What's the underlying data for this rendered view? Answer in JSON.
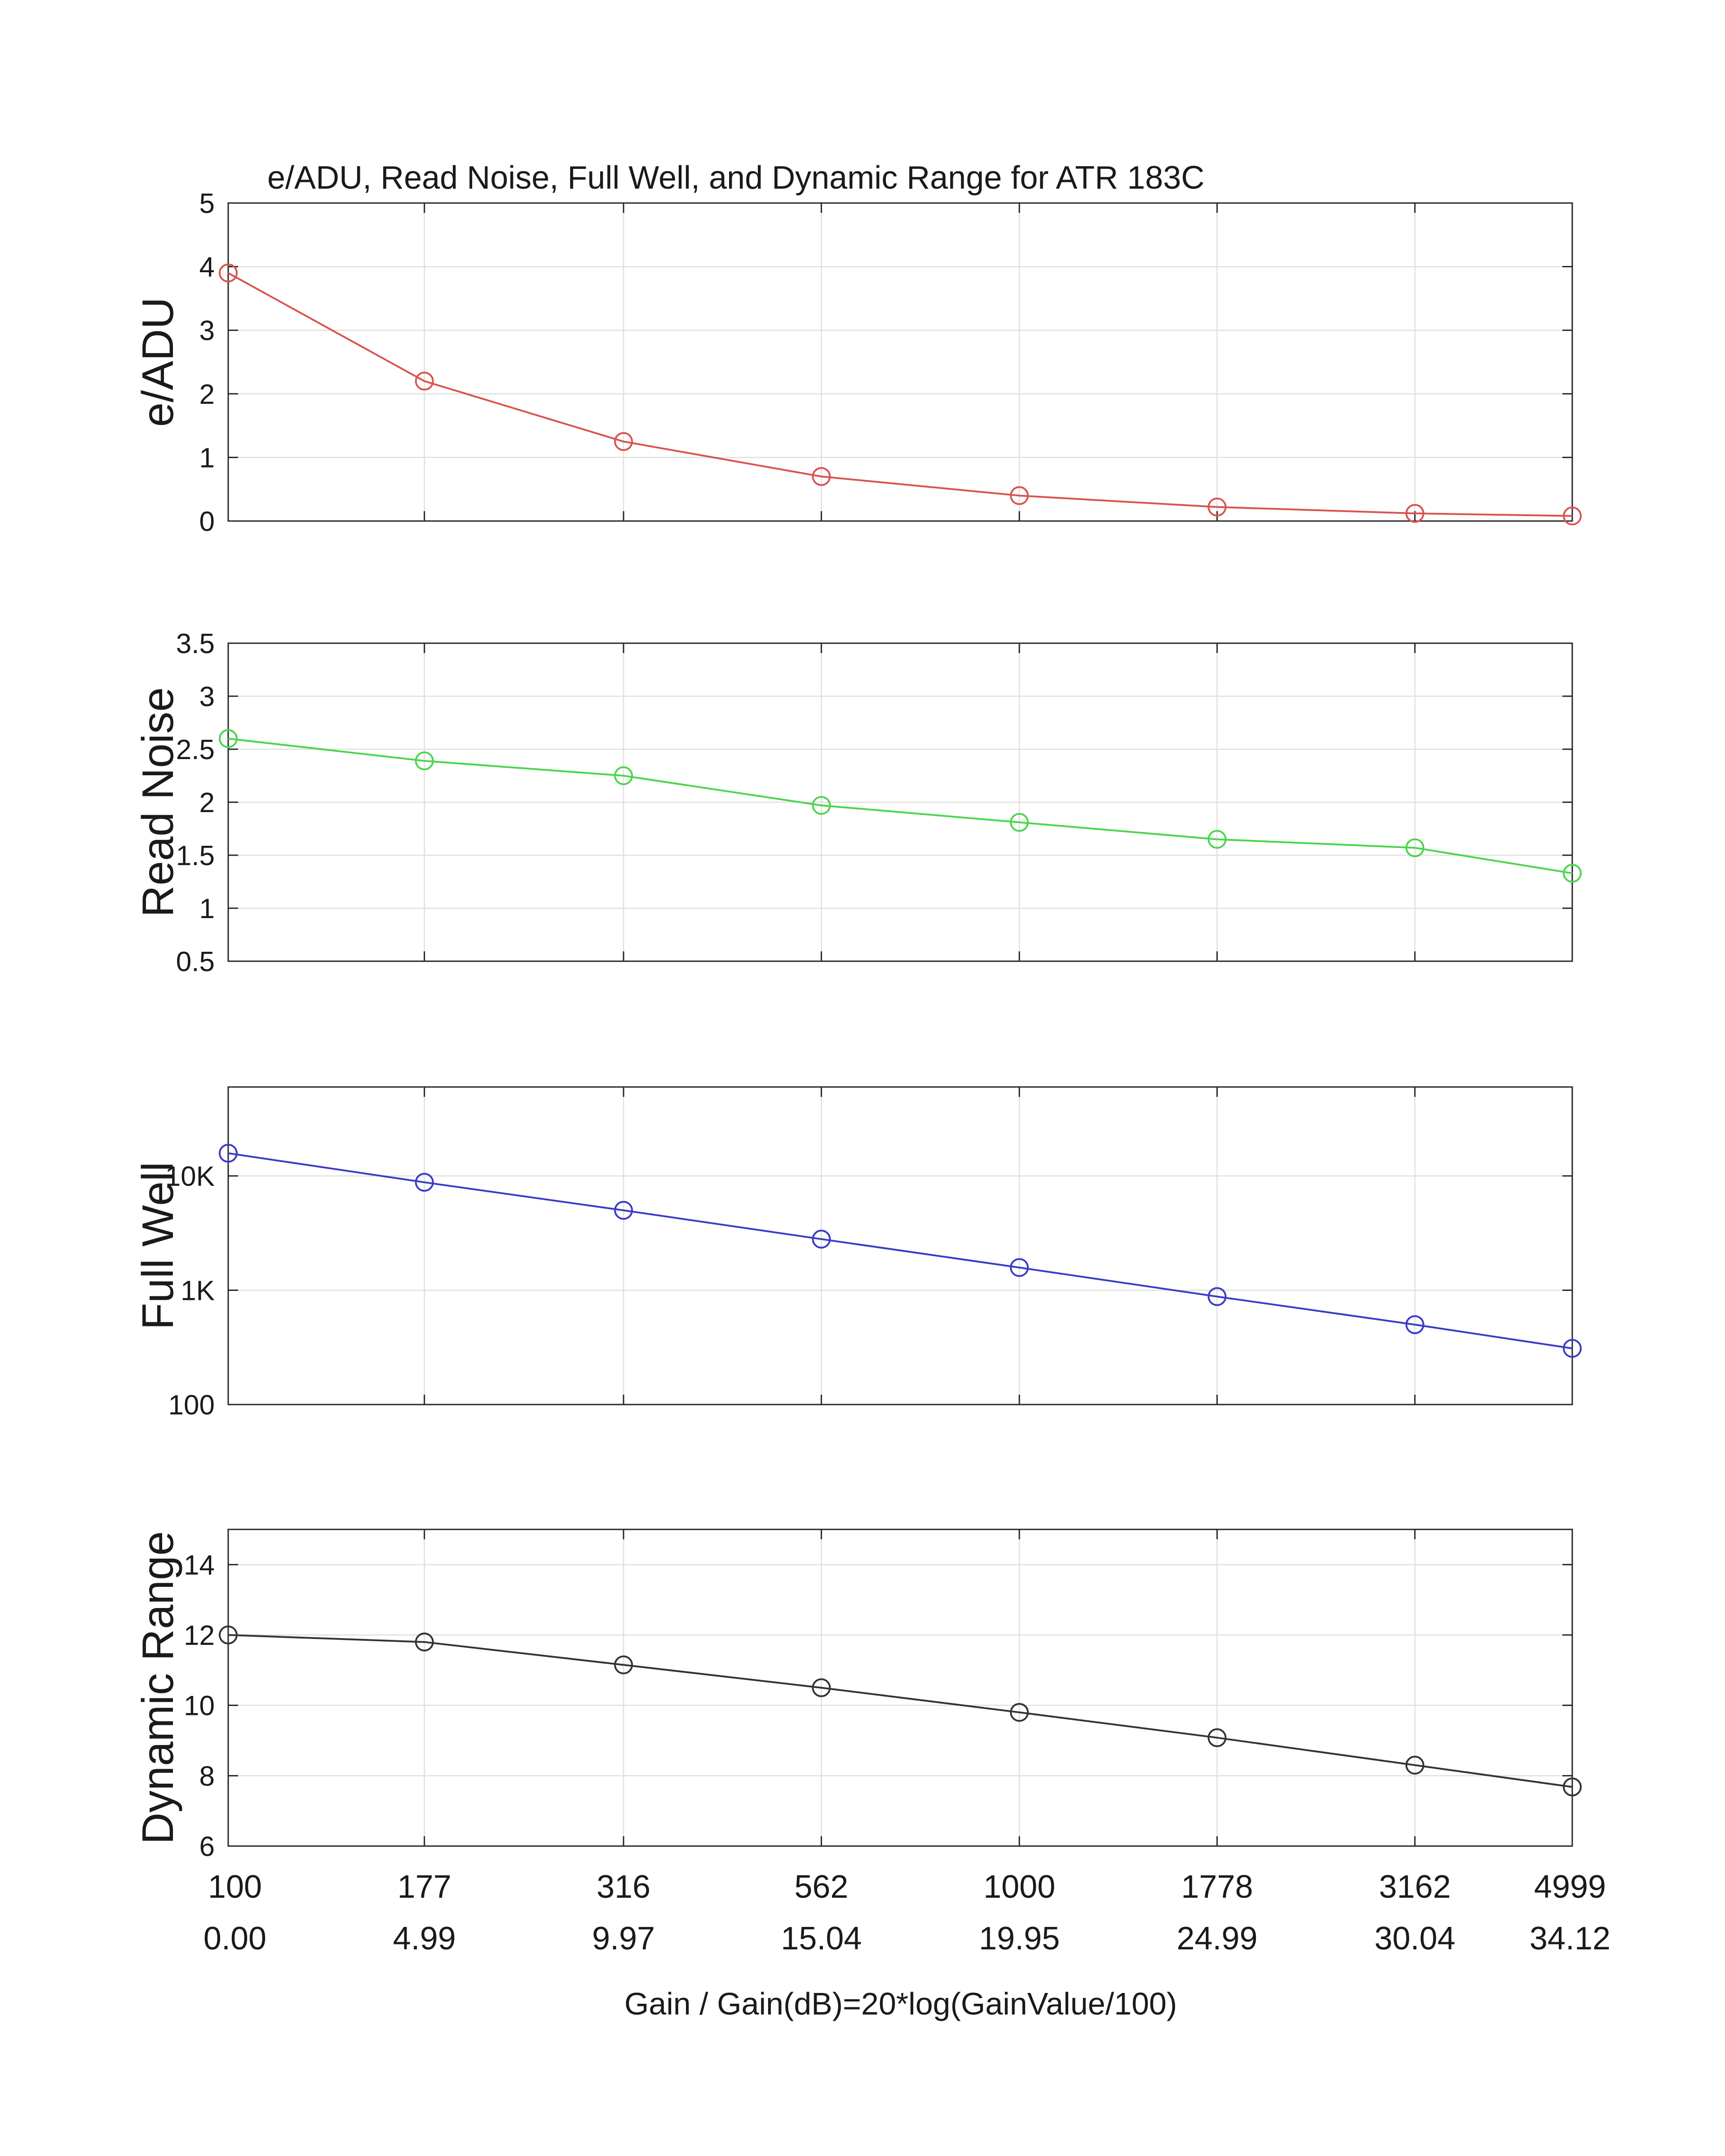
{
  "chart_data": {
    "title": "e/ADU, Read Noise, Full Well, and Dynamic Range for ATR 183C",
    "xlabel": "Gain / Gain(dB)=20*log(GainValue/100)",
    "x_tick_labels": [
      "100",
      "177",
      "316",
      "562",
      "1000",
      "1778",
      "3162",
      "4999"
    ],
    "x_tick_labels_db": [
      "0.00",
      "4.99",
      "9.97",
      "15.04",
      "19.95",
      "24.99",
      "30.04",
      "34.12"
    ],
    "x_scale": "log",
    "x": [
      100,
      177,
      316,
      562,
      1000,
      1778,
      3162,
      4999
    ],
    "grid": true,
    "subplots": [
      {
        "type": "line",
        "ylabel": "e/ADU",
        "color": "#d9534f",
        "marker": "circle",
        "ylim": [
          0,
          5
        ],
        "y_scale": "linear",
        "yticks": [
          0,
          1,
          2,
          3,
          4,
          5
        ],
        "ytick_labels": [
          "0",
          "1",
          "2",
          "3",
          "4",
          "5"
        ],
        "values": [
          3.9,
          2.2,
          1.25,
          0.7,
          0.4,
          0.22,
          0.12,
          0.08
        ]
      },
      {
        "type": "line",
        "ylabel": "Read Noise",
        "color": "#4cd44c",
        "marker": "circle",
        "ylim": [
          0.5,
          3.5
        ],
        "y_scale": "linear",
        "yticks": [
          0.5,
          1,
          1.5,
          2,
          2.5,
          3,
          3.5
        ],
        "ytick_labels": [
          "0.5",
          "1",
          "1.5",
          "2",
          "2.5",
          "3",
          "3.5"
        ],
        "values": [
          2.6,
          2.39,
          2.25,
          1.97,
          1.81,
          1.65,
          1.57,
          1.33
        ]
      },
      {
        "type": "line",
        "ylabel": "Full Well",
        "color": "#3a3ac9",
        "marker": "circle",
        "ylim": [
          100,
          60000
        ],
        "y_scale": "log",
        "yticks": [
          100,
          1000,
          10000
        ],
        "ytick_labels": [
          "100",
          "1K",
          "10K"
        ],
        "values": [
          15800,
          8800,
          5000,
          2800,
          1580,
          880,
          500,
          310
        ]
      },
      {
        "type": "line",
        "ylabel": "Dynamic Range",
        "color": "#333333",
        "marker": "circle",
        "ylim": [
          6,
          15
        ],
        "y_scale": "linear",
        "yticks": [
          6,
          8,
          10,
          12,
          14
        ],
        "ytick_labels": [
          "6",
          "8",
          "10",
          "12",
          "14"
        ],
        "values": [
          12.0,
          11.8,
          11.15,
          10.5,
          9.8,
          9.08,
          8.3,
          7.68
        ]
      }
    ]
  }
}
